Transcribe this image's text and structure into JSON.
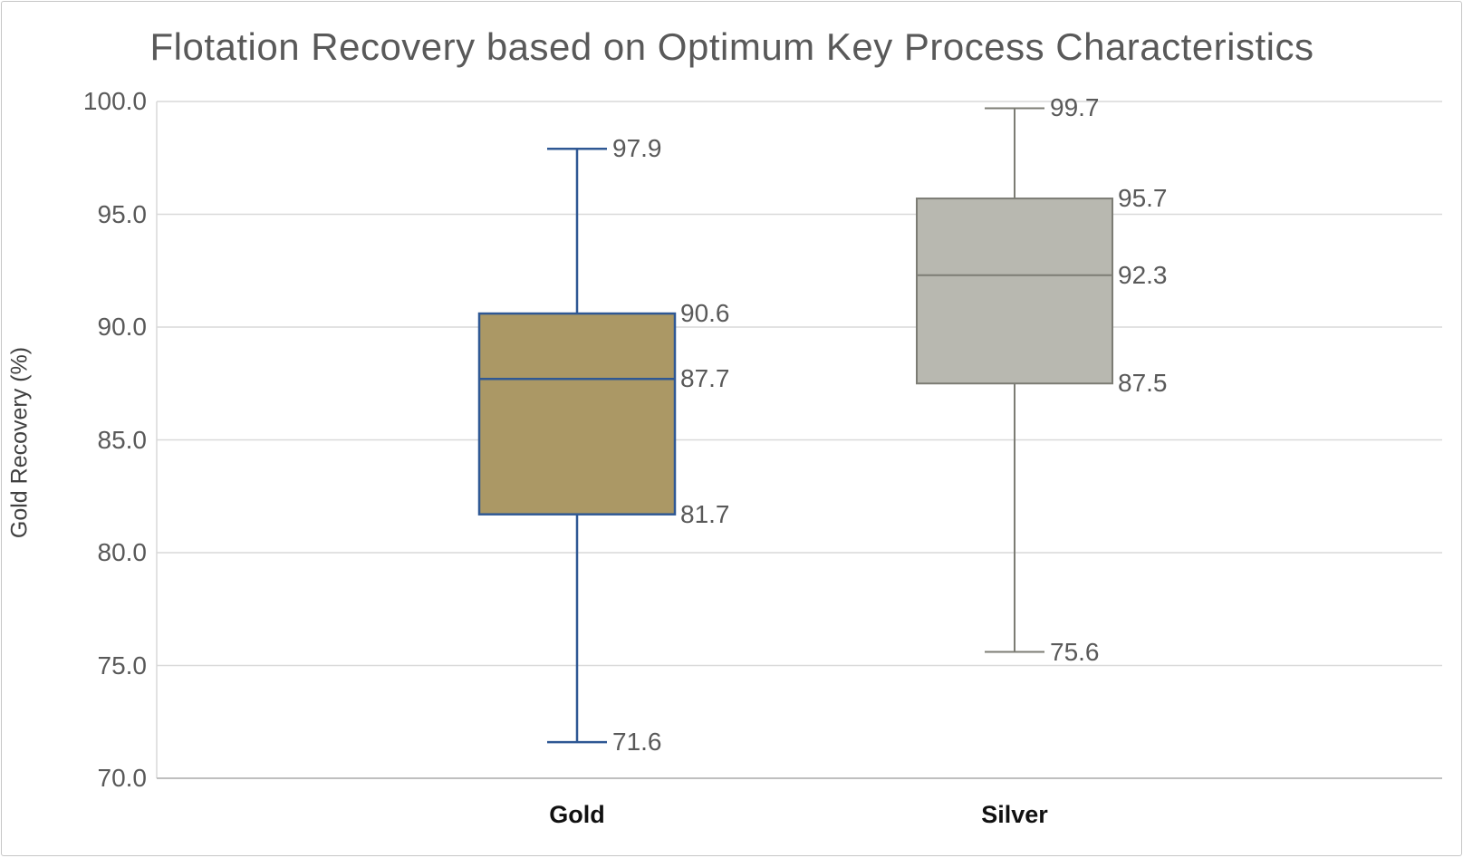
{
  "chart_data": {
    "type": "boxplot",
    "title": "Flotation Recovery based on Optimum Key Process Characteristics",
    "ylabel": "Gold Recovery (%)",
    "xlabel": "",
    "categories": [
      "Gold",
      "Silver"
    ],
    "ylim": [
      70.0,
      100.0
    ],
    "ytick_labels": [
      "100.0",
      "95.0",
      "90.0",
      "85.0",
      "80.0",
      "75.0",
      "70.0"
    ],
    "grid": true,
    "legend": "none",
    "series": [
      {
        "name": "Gold",
        "min": 71.6,
        "q1": 81.7,
        "median": 87.7,
        "q3": 90.6,
        "max": 97.9,
        "shown_labels": [
          "97.9",
          "90.6",
          "87.7",
          "81.7",
          "71.6"
        ],
        "fill": "#ab9865",
        "stroke": "#2f5894"
      },
      {
        "name": "Silver",
        "min": 75.6,
        "q1": 87.5,
        "median": 92.3,
        "q3": 95.7,
        "max": 99.7,
        "shown_labels": [
          "99.7",
          "95.7",
          "92.3",
          "87.5",
          "75.6"
        ],
        "fill": "#b8b8b0",
        "stroke": "#7c7c74"
      }
    ],
    "colors": {
      "gridline": "#d9d9d9",
      "axis_line": "#bfbfbf",
      "title_text": "#595959",
      "tick_text": "#595959",
      "stat_label_text": "#595959",
      "category_text": "#111111",
      "background": "#ffffff"
    }
  }
}
